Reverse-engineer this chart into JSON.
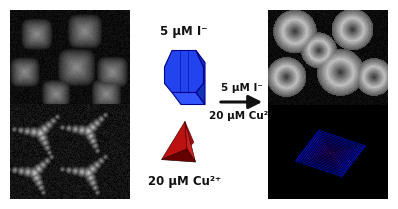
{
  "bg_color": "#ffffff",
  "label_top": "5 μM I⁻",
  "label_bottom": "20 μM Cu²⁺",
  "arrow_label_top": "5 μM I⁻",
  "arrow_label_bottom": "20 μM Cu²⁺",
  "cube_blue_face": "#2233ee",
  "cube_blue_top": "#3355ff",
  "cube_blue_right": "#1122bb",
  "cube_blue_edge": "#00008b",
  "star_light": "#cc2222",
  "star_dark": "#7a0000",
  "terraced_colors": [
    "#000080",
    "#000099",
    "#0000bb",
    "#1111cc",
    "#2222dd",
    "#3333ee",
    "#4444cc",
    "#5533bb",
    "#6622aa",
    "#771199",
    "#880088"
  ],
  "panel_bg": "#111111",
  "fig_bg": "#ffffff",
  "text_color": "#111111",
  "arrow_color": "#111111",
  "sem_left_top_bg": "#1a1a1a",
  "sem_right_top_bg": "#111111"
}
